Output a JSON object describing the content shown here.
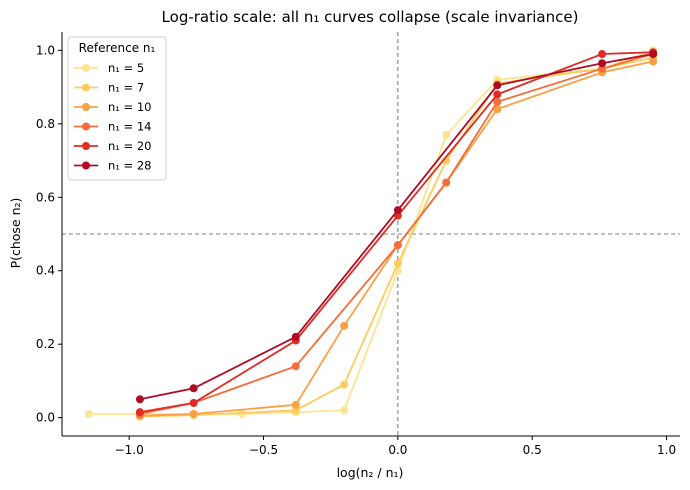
{
  "chart_data": {
    "type": "line",
    "title": "Log-ratio scale: all n₁ curves collapse (scale invariance)",
    "xlabel": "log(n₂ / n₁)",
    "ylabel": "P(chose n₂)",
    "xlim": [
      -1.25,
      1.05
    ],
    "ylim": [
      -0.05,
      1.05
    ],
    "xticks": [
      -1.0,
      -0.5,
      0.0,
      0.5,
      1.0
    ],
    "xtick_labels": [
      "−1.0",
      "−0.5",
      "0.0",
      "0.5",
      "1.0"
    ],
    "yticks": [
      0.0,
      0.2,
      0.4,
      0.6,
      0.8,
      1.0
    ],
    "ytick_labels": [
      "0.0",
      "0.2",
      "0.4",
      "0.6",
      "0.8",
      "1.0"
    ],
    "reference_lines": {
      "vertical_x": 0.0,
      "horizontal_y": 0.5
    },
    "legend": {
      "title": "Reference n₁",
      "position": "upper-left"
    },
    "series": [
      {
        "name": "n₁ = 5",
        "color": "#fee391",
        "x": [
          -1.15,
          -0.96,
          -0.76,
          -0.58,
          -0.38,
          -0.2,
          0.0,
          0.18,
          0.37,
          0.76,
          0.95
        ],
        "y": [
          0.01,
          0.01,
          0.01,
          0.01,
          0.015,
          0.02,
          0.4,
          0.77,
          0.92,
          0.95,
          1.0
        ]
      },
      {
        "name": "n₁ = 7",
        "color": "#fecc5c",
        "x": [
          -0.96,
          -0.76,
          -0.38,
          -0.2,
          0.0,
          0.18,
          0.37,
          0.76,
          0.95
        ],
        "y": [
          0.003,
          0.007,
          0.02,
          0.09,
          0.42,
          0.7,
          0.91,
          0.95,
          0.98
        ]
      },
      {
        "name": "n₁ = 10",
        "color": "#fd9f43",
        "x": [
          -0.96,
          -0.76,
          -0.38,
          -0.2,
          0.0,
          0.18,
          0.37,
          0.76,
          0.95
        ],
        "y": [
          0.005,
          0.01,
          0.035,
          0.25,
          0.47,
          0.64,
          0.84,
          0.94,
          0.97
        ]
      },
      {
        "name": "n₁ = 14",
        "color": "#f46d3a",
        "x": [
          -0.96,
          -0.76,
          -0.38,
          0.0,
          0.18,
          0.37,
          0.76,
          0.95
        ],
        "y": [
          0.01,
          0.04,
          0.14,
          0.47,
          0.64,
          0.86,
          0.95,
          0.99
        ]
      },
      {
        "name": "n₁ = 20",
        "color": "#df2c26",
        "x": [
          -0.96,
          -0.76,
          -0.38,
          0.0,
          0.37,
          0.76,
          0.95
        ],
        "y": [
          0.015,
          0.04,
          0.21,
          0.55,
          0.88,
          0.99,
          0.995
        ]
      },
      {
        "name": "n₁ = 28",
        "color": "#b10b24",
        "x": [
          -0.96,
          -0.76,
          -0.38,
          0.0,
          0.37,
          0.76,
          0.95
        ],
        "y": [
          0.05,
          0.08,
          0.22,
          0.565,
          0.905,
          0.965,
          0.99
        ]
      }
    ]
  }
}
